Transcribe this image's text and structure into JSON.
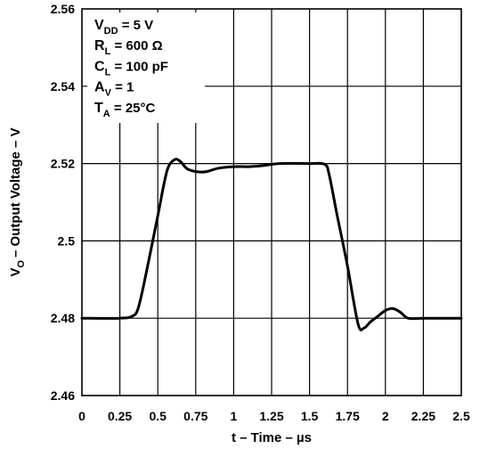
{
  "chart_data": {
    "type": "line",
    "title": "",
    "xlabel": "t – Time – µs",
    "ylabel": {
      "main": "V",
      "sub": "O",
      "rest": "– Output Voltage – V"
    },
    "xlim": [
      0,
      2.5
    ],
    "ylim": [
      2.46,
      2.56
    ],
    "x_ticks": [
      0,
      0.25,
      0.5,
      0.75,
      1,
      1.25,
      1.5,
      1.75,
      2,
      2.25,
      2.5
    ],
    "x_tick_labels": [
      "0",
      "0.25",
      "0.5",
      "0.75",
      "1",
      "1.25",
      "1.5",
      "1.75",
      "2",
      "2.25",
      "2.5"
    ],
    "y_ticks": [
      2.46,
      2.48,
      2.5,
      2.52,
      2.54,
      2.56
    ],
    "y_tick_labels": [
      "2.46",
      "2.48",
      "2.5",
      "2.52",
      "2.54",
      "2.56"
    ],
    "grid": true,
    "conditions": [
      {
        "main": "V",
        "sub": "DD",
        "rest": " = 5 V"
      },
      {
        "main": "R",
        "sub": "L",
        "rest": " = 600 Ω"
      },
      {
        "main": "C",
        "sub": "L",
        "rest": " = 100 pF"
      },
      {
        "main": "A",
        "sub": "V",
        "rest": " = 1"
      },
      {
        "main": "T",
        "sub": "A",
        "rest": " = 25°C"
      }
    ],
    "series": [
      {
        "x": [
          0,
          0.25,
          0.33,
          0.37,
          0.42,
          0.5,
          0.56,
          0.61,
          0.65,
          0.7,
          0.8,
          0.9,
          1.0,
          1.1,
          1.2,
          1.3,
          1.5,
          1.6,
          1.63,
          1.68,
          1.75,
          1.82,
          1.86,
          1.9,
          1.95,
          2.0,
          2.05,
          2.1,
          2.15,
          2.25,
          2.5
        ],
        "y": [
          2.48,
          2.48,
          2.4805,
          2.4825,
          2.491,
          2.5065,
          2.518,
          2.521,
          2.5205,
          2.5185,
          2.5178,
          2.5188,
          2.5192,
          2.5192,
          2.5195,
          2.52,
          2.52,
          2.5198,
          2.517,
          2.507,
          2.4935,
          2.4785,
          2.4775,
          2.479,
          2.4805,
          2.482,
          2.4825,
          2.4815,
          2.48,
          2.48,
          2.48
        ]
      }
    ]
  }
}
